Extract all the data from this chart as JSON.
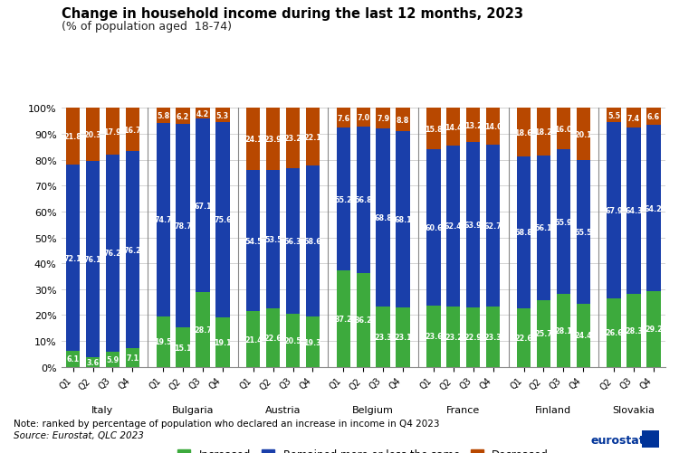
{
  "title": "Change in household income during the last 12 months, 2023",
  "subtitle": "(% of population aged  18-74)",
  "countries": [
    "Italy",
    "Bulgaria",
    "Austria",
    "Belgium",
    "France",
    "Finland",
    "Slovakia"
  ],
  "quarters": {
    "Italy": [
      "Q1",
      "Q2",
      "Q3",
      "Q4"
    ],
    "Bulgaria": [
      "Q1",
      "Q2",
      "Q3",
      "Q4"
    ],
    "Austria": [
      "Q1",
      "Q2",
      "Q3",
      "Q4"
    ],
    "Belgium": [
      "Q1",
      "Q2",
      "Q3",
      "Q4"
    ],
    "France": [
      "Q1",
      "Q2",
      "Q3",
      "Q4"
    ],
    "Finland": [
      "Q1",
      "Q2",
      "Q3",
      "Q4"
    ],
    "Slovakia": [
      "Q2",
      "Q3",
      "Q4"
    ]
  },
  "increased": {
    "Italy": [
      6.1,
      3.6,
      5.9,
      7.1
    ],
    "Bulgaria": [
      19.5,
      15.1,
      28.7,
      19.1
    ],
    "Austria": [
      21.4,
      22.6,
      20.5,
      19.3
    ],
    "Belgium": [
      37.2,
      36.2,
      23.3,
      23.1
    ],
    "France": [
      23.6,
      23.2,
      22.9,
      23.3
    ],
    "Finland": [
      22.6,
      25.7,
      28.1,
      24.4
    ],
    "Slovakia": [
      26.6,
      28.3,
      29.2
    ]
  },
  "remained": {
    "Italy": [
      72.1,
      76.1,
      76.2,
      76.2
    ],
    "Bulgaria": [
      74.7,
      78.7,
      67.1,
      75.6
    ],
    "Austria": [
      54.5,
      53.5,
      56.3,
      58.6
    ],
    "Belgium": [
      55.2,
      56.8,
      68.8,
      68.1
    ],
    "France": [
      60.6,
      62.4,
      63.9,
      62.7
    ],
    "Finland": [
      58.8,
      56.1,
      55.9,
      55.5
    ],
    "Slovakia": [
      67.9,
      64.3,
      64.2
    ]
  },
  "decreased": {
    "Italy": [
      21.8,
      20.3,
      17.9,
      16.7
    ],
    "Bulgaria": [
      5.8,
      6.2,
      4.2,
      5.3
    ],
    "Austria": [
      24.1,
      23.9,
      23.2,
      22.1
    ],
    "Belgium": [
      7.6,
      7.0,
      7.9,
      8.8
    ],
    "France": [
      15.8,
      14.4,
      13.2,
      14.0
    ],
    "Finland": [
      18.6,
      18.2,
      16.0,
      20.1
    ],
    "Slovakia": [
      5.5,
      7.4,
      6.6
    ]
  },
  "color_increased": "#3daa3d",
  "color_remained": "#1a3faa",
  "color_decreased": "#b84800",
  "bar_width": 0.7,
  "note": "Note: ranked by percentage of population who declared an increase in income in Q4 2023",
  "source": "Source: Eurostat, QLC 2023"
}
